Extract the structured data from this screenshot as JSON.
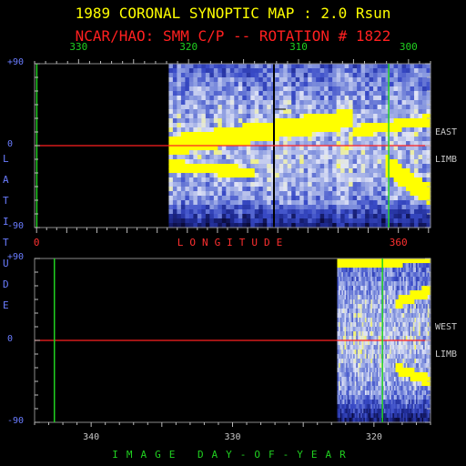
{
  "title": "1989 CORONAL SYNOPTIC MAP : 2.0 Rsun",
  "subtitle": "NCAR/HAO: SMM C/P -- ROTATION # 1822",
  "colors": {
    "title": "#ffff00",
    "subtitle": "#ff2020",
    "axis_ticks": "#20d020",
    "latitude_ticks": "#6a7cff",
    "equator_line": "#ff2020",
    "marker_line": "#20d020",
    "frame": "#8a8a8a",
    "colormap": [
      "#0a0a3a",
      "#1e2a90",
      "#3a4cc8",
      "#8a9ae0",
      "#e0e4f6",
      "#ffff00"
    ]
  },
  "chart_data": [
    {
      "type": "heatmap",
      "panel": "top",
      "title": "",
      "top_axis": {
        "label": "",
        "ticks": [
          "330",
          "320",
          "310",
          "300"
        ],
        "values": [
          330,
          320,
          310,
          300
        ],
        "range": [
          334,
          298
        ]
      },
      "bottom_axis": {
        "label": "LONGITUDE",
        "ticks": [
          "0",
          "360"
        ],
        "values": [
          0,
          360
        ],
        "range": [
          -2,
          392
        ]
      },
      "y_axis": {
        "label": "LATITUDE",
        "ticks": [
          "+90",
          "0",
          "-90"
        ],
        "values": [
          90,
          0,
          -90
        ],
        "range": [
          -90,
          90
        ]
      },
      "right_labels": [
        "EAST",
        "LIMB"
      ],
      "data_start_day": 321.8,
      "marker_day": 333.8,
      "marker_days": [
        333.8,
        301.8
      ],
      "bright_bands": [
        {
          "day_start": 321.8,
          "day_end": 305,
          "lat_start": 0,
          "lat_end": 30
        },
        {
          "day_start": 305,
          "day_end": 298,
          "lat_start": 15,
          "lat_end": 28
        },
        {
          "day_start": 321.8,
          "day_end": 314,
          "lat_start": -22,
          "lat_end": -30
        },
        {
          "day_start": 302,
          "day_end": 298,
          "lat_start": -22,
          "lat_end": -55
        }
      ]
    },
    {
      "type": "heatmap",
      "panel": "bottom",
      "title": "",
      "bottom_axis": {
        "label": "IMAGE DAY-OF-YEAR",
        "ticks": [
          "340",
          "330",
          "320"
        ],
        "values": [
          340,
          330,
          320
        ],
        "range": [
          344,
          316
        ]
      },
      "y_axis": {
        "label": "LATITUDE",
        "ticks": [
          "+90",
          "0",
          "-90"
        ],
        "values": [
          90,
          0,
          -90
        ],
        "range": [
          -90,
          90
        ]
      },
      "right_labels": [
        "WEST",
        "LIMB"
      ],
      "data_start_day": 322.6,
      "marker_days": [
        342.6,
        319.4
      ],
      "bright_bands": [
        {
          "day_start": 322.6,
          "day_end": 316,
          "lat_start": 85,
          "lat_end": 90
        },
        {
          "day_start": 318.5,
          "day_end": 316,
          "lat_start": 40,
          "lat_end": 55
        },
        {
          "day_start": 318.5,
          "day_end": 316,
          "lat_start": -30,
          "lat_end": -45
        }
      ]
    }
  ],
  "side_label": "LATITUDE"
}
